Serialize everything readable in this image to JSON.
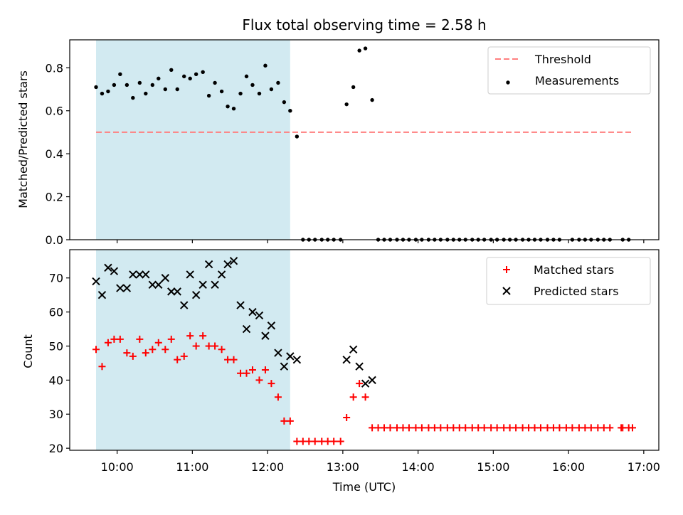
{
  "chart_data": {
    "title": "Flux total observing time = 2.58 h",
    "xlabel": "Time (UTC)",
    "x_units": "hours UTC (decimal)",
    "xlim": [
      9.37,
      17.2
    ],
    "xticks": [
      10,
      11,
      12,
      13,
      14,
      15,
      16,
      17
    ],
    "xtick_labels": [
      "10:00",
      "11:00",
      "12:00",
      "13:00",
      "14:00",
      "15:00",
      "16:00",
      "17:00"
    ],
    "shaded_interval": [
      9.72,
      12.3
    ],
    "shaded_color": "#add8e6",
    "panels": [
      {
        "type": "scatter",
        "ylabel": "Matched/Predicted stars",
        "ylim": [
          0,
          0.93
        ],
        "yticks": [
          0.0,
          0.2,
          0.4,
          0.6,
          0.8
        ],
        "ytick_labels": [
          "0.0",
          "0.2",
          "0.4",
          "0.6",
          "0.8"
        ],
        "legend_position": "top-right",
        "threshold": {
          "name": "Threshold",
          "y": 0.5,
          "x_range": [
            9.72,
            16.85
          ],
          "color": "#ff7f7f",
          "style": "dashed"
        },
        "series": [
          {
            "name": "Measurements",
            "marker": "dot",
            "color": "#000000",
            "points": [
              [
                9.72,
                0.71
              ],
              [
                9.8,
                0.68
              ],
              [
                9.88,
                0.69
              ],
              [
                9.96,
                0.72
              ],
              [
                10.04,
                0.77
              ],
              [
                10.13,
                0.72
              ],
              [
                10.21,
                0.66
              ],
              [
                10.3,
                0.73
              ],
              [
                10.38,
                0.68
              ],
              [
                10.47,
                0.72
              ],
              [
                10.55,
                0.75
              ],
              [
                10.64,
                0.7
              ],
              [
                10.72,
                0.79
              ],
              [
                10.8,
                0.7
              ],
              [
                10.89,
                0.76
              ],
              [
                10.97,
                0.75
              ],
              [
                11.05,
                0.77
              ],
              [
                11.14,
                0.78
              ],
              [
                11.22,
                0.67
              ],
              [
                11.3,
                0.73
              ],
              [
                11.39,
                0.69
              ],
              [
                11.47,
                0.62
              ],
              [
                11.55,
                0.61
              ],
              [
                11.64,
                0.68
              ],
              [
                11.72,
                0.76
              ],
              [
                11.8,
                0.72
              ],
              [
                11.89,
                0.68
              ],
              [
                11.97,
                0.81
              ],
              [
                12.05,
                0.7
              ],
              [
                12.14,
                0.73
              ],
              [
                12.22,
                0.64
              ],
              [
                12.3,
                0.6
              ],
              [
                12.39,
                0.48
              ],
              [
                12.47,
                0.0
              ],
              [
                12.55,
                0.0
              ],
              [
                12.63,
                0.0
              ],
              [
                12.72,
                0.0
              ],
              [
                12.8,
                0.0
              ],
              [
                12.88,
                0.0
              ],
              [
                12.97,
                0.0
              ],
              [
                13.05,
                0.63
              ],
              [
                13.14,
                0.71
              ],
              [
                13.22,
                0.88
              ],
              [
                13.3,
                0.89
              ],
              [
                13.39,
                0.65
              ],
              [
                13.47,
                0.0
              ],
              [
                13.55,
                0.0
              ],
              [
                13.63,
                0.0
              ],
              [
                13.72,
                0.0
              ],
              [
                13.8,
                0.0
              ],
              [
                13.88,
                0.0
              ],
              [
                13.97,
                0.0
              ],
              [
                14.05,
                0.0
              ],
              [
                14.14,
                0.0
              ],
              [
                14.22,
                0.0
              ],
              [
                14.3,
                0.0
              ],
              [
                14.39,
                0.0
              ],
              [
                14.47,
                0.0
              ],
              [
                14.55,
                0.0
              ],
              [
                14.63,
                0.0
              ],
              [
                14.72,
                0.0
              ],
              [
                14.8,
                0.0
              ],
              [
                14.88,
                0.0
              ],
              [
                14.97,
                0.0
              ],
              [
                15.05,
                0.0
              ],
              [
                15.14,
                0.0
              ],
              [
                15.22,
                0.0
              ],
              [
                15.3,
                0.0
              ],
              [
                15.39,
                0.0
              ],
              [
                15.47,
                0.0
              ],
              [
                15.55,
                0.0
              ],
              [
                15.63,
                0.0
              ],
              [
                15.72,
                0.0
              ],
              [
                15.8,
                0.0
              ],
              [
                15.88,
                0.0
              ],
              [
                16.05,
                0.0
              ],
              [
                16.14,
                0.0
              ],
              [
                16.22,
                0.0
              ],
              [
                16.3,
                0.0
              ],
              [
                16.39,
                0.0
              ],
              [
                16.47,
                0.0
              ],
              [
                16.55,
                0.0
              ],
              [
                16.72,
                0.0
              ],
              [
                16.8,
                0.0
              ]
            ]
          }
        ]
      },
      {
        "type": "scatter",
        "ylabel": "Count",
        "ylim": [
          19.4,
          78.3
        ],
        "yticks": [
          20,
          30,
          40,
          50,
          60,
          70
        ],
        "ytick_labels": [
          "20",
          "30",
          "40",
          "50",
          "60",
          "70"
        ],
        "legend_position": "top-right",
        "series": [
          {
            "name": "Matched stars",
            "marker": "plus",
            "color": "#ff0000",
            "points": [
              [
                9.72,
                49
              ],
              [
                9.8,
                44
              ],
              [
                9.88,
                51
              ],
              [
                9.96,
                52
              ],
              [
                10.04,
                52
              ],
              [
                10.13,
                48
              ],
              [
                10.21,
                47
              ],
              [
                10.3,
                52
              ],
              [
                10.38,
                48
              ],
              [
                10.47,
                49
              ],
              [
                10.55,
                51
              ],
              [
                10.64,
                49
              ],
              [
                10.72,
                52
              ],
              [
                10.8,
                46
              ],
              [
                10.89,
                47
              ],
              [
                10.97,
                53
              ],
              [
                11.05,
                50
              ],
              [
                11.14,
                53
              ],
              [
                11.22,
                50
              ],
              [
                11.3,
                50
              ],
              [
                11.39,
                49
              ],
              [
                11.47,
                46
              ],
              [
                11.55,
                46
              ],
              [
                11.64,
                42
              ],
              [
                11.72,
                42
              ],
              [
                11.8,
                43
              ],
              [
                11.89,
                40
              ],
              [
                11.97,
                43
              ],
              [
                12.05,
                39
              ],
              [
                12.14,
                35
              ],
              [
                12.22,
                28
              ],
              [
                12.3,
                28
              ],
              [
                12.39,
                22
              ],
              [
                12.47,
                22
              ],
              [
                12.55,
                22
              ],
              [
                12.63,
                22
              ],
              [
                12.72,
                22
              ],
              [
                12.8,
                22
              ],
              [
                12.88,
                22
              ],
              [
                12.97,
                22
              ],
              [
                13.05,
                29
              ],
              [
                13.14,
                35
              ],
              [
                13.22,
                39
              ],
              [
                13.3,
                35
              ],
              [
                13.39,
                26
              ],
              [
                13.47,
                26
              ],
              [
                13.55,
                26
              ],
              [
                13.63,
                26
              ],
              [
                13.72,
                26
              ],
              [
                13.8,
                26
              ],
              [
                13.88,
                26
              ],
              [
                13.97,
                26
              ],
              [
                14.05,
                26
              ],
              [
                14.14,
                26
              ],
              [
                14.22,
                26
              ],
              [
                14.3,
                26
              ],
              [
                14.39,
                26
              ],
              [
                14.47,
                26
              ],
              [
                14.55,
                26
              ],
              [
                14.63,
                26
              ],
              [
                14.72,
                26
              ],
              [
                14.8,
                26
              ],
              [
                14.88,
                26
              ],
              [
                14.97,
                26
              ],
              [
                15.05,
                26
              ],
              [
                15.14,
                26
              ],
              [
                15.22,
                26
              ],
              [
                15.3,
                26
              ],
              [
                15.39,
                26
              ],
              [
                15.47,
                26
              ],
              [
                15.55,
                26
              ],
              [
                15.63,
                26
              ],
              [
                15.72,
                26
              ],
              [
                15.8,
                26
              ],
              [
                15.88,
                26
              ],
              [
                15.97,
                26
              ],
              [
                16.05,
                26
              ],
              [
                16.14,
                26
              ],
              [
                16.22,
                26
              ],
              [
                16.3,
                26
              ],
              [
                16.39,
                26
              ],
              [
                16.47,
                26
              ],
              [
                16.55,
                26
              ],
              [
                16.7,
                26
              ],
              [
                16.72,
                26
              ],
              [
                16.8,
                26
              ],
              [
                16.85,
                26
              ]
            ]
          },
          {
            "name": "Predicted stars",
            "marker": "x",
            "color": "#000000",
            "points": [
              [
                9.72,
                69
              ],
              [
                9.8,
                65
              ],
              [
                9.88,
                73
              ],
              [
                9.96,
                72
              ],
              [
                10.04,
                67
              ],
              [
                10.13,
                67
              ],
              [
                10.21,
                71
              ],
              [
                10.3,
                71
              ],
              [
                10.38,
                71
              ],
              [
                10.47,
                68
              ],
              [
                10.55,
                68
              ],
              [
                10.64,
                70
              ],
              [
                10.72,
                66
              ],
              [
                10.8,
                66
              ],
              [
                10.89,
                62
              ],
              [
                10.97,
                71
              ],
              [
                11.05,
                65
              ],
              [
                11.14,
                68
              ],
              [
                11.22,
                74
              ],
              [
                11.3,
                68
              ],
              [
                11.39,
                71
              ],
              [
                11.47,
                74
              ],
              [
                11.55,
                75
              ],
              [
                11.64,
                62
              ],
              [
                11.72,
                55
              ],
              [
                11.8,
                60
              ],
              [
                11.89,
                59
              ],
              [
                11.97,
                53
              ],
              [
                12.05,
                56
              ],
              [
                12.14,
                48
              ],
              [
                12.22,
                44
              ],
              [
                12.3,
                47
              ],
              [
                12.39,
                46
              ],
              [
                13.05,
                46
              ],
              [
                13.14,
                49
              ],
              [
                13.22,
                44
              ],
              [
                13.3,
                39
              ],
              [
                13.39,
                40
              ]
            ]
          }
        ]
      }
    ]
  }
}
